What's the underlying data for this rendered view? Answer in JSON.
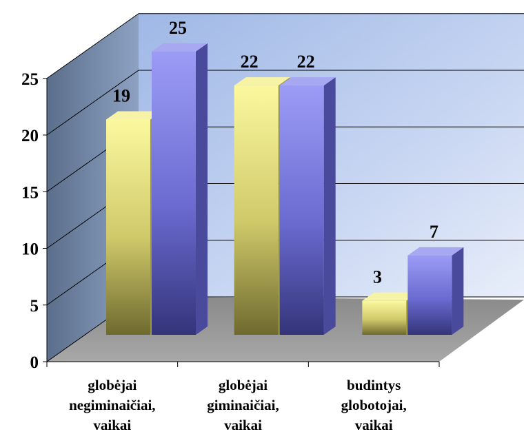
{
  "chart_data": {
    "type": "bar",
    "categories": [
      [
        "globėjai",
        "negiminaičiai,",
        "vaikai"
      ],
      [
        "globėjai",
        "giminaičiai,",
        "vaikai"
      ],
      [
        "budintys",
        "globotojai,",
        "vaikai"
      ]
    ],
    "series": [
      {
        "values": [
          19,
          22,
          3
        ],
        "color": "#f4f08a"
      },
      {
        "values": [
          25,
          22,
          7
        ],
        "color": "#8f8fee"
      }
    ],
    "ylim": [
      0,
      25
    ],
    "yticks": [
      "0",
      "5",
      "10",
      "15",
      "20",
      "25"
    ],
    "grid": true,
    "legend": "none",
    "style": "3d-clustered-column"
  }
}
